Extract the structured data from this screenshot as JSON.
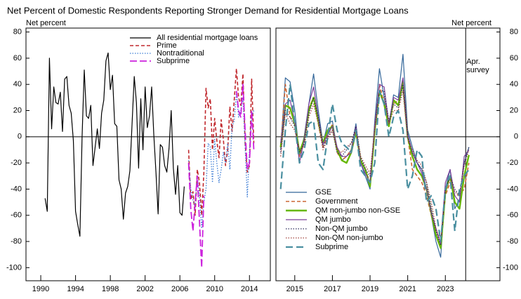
{
  "title": "Net Percent of Domestic Respondents Reporting Stronger Demand for Residential Mortgage Loans",
  "chart_data": [
    {
      "type": "line",
      "ylabel": "Net percent",
      "yaxis_side": "left",
      "legend": "upper right",
      "xlim": [
        1988.3,
        2016.4
      ],
      "ylim": [
        -110,
        83
      ],
      "xticks": [
        1990,
        1994,
        1998,
        2002,
        2006,
        2010,
        2014
      ],
      "yticks": [
        -100,
        -80,
        -60,
        -40,
        -20,
        0,
        20,
        40,
        60,
        80
      ],
      "series": [
        {
          "name": "All residential mortgage loans",
          "color": "#000000",
          "style": "solid",
          "x": [
            1990.5,
            1990.75,
            1991,
            1991.25,
            1991.5,
            1991.75,
            1992,
            1992.25,
            1992.5,
            1992.75,
            1993,
            1993.25,
            1993.5,
            1993.75,
            1994,
            1994.25,
            1994.5,
            1994.75,
            1995,
            1995.25,
            1995.5,
            1995.75,
            1996,
            1996.25,
            1996.5,
            1996.75,
            1997,
            1997.25,
            1997.5,
            1997.75,
            1998,
            1998.25,
            1998.5,
            1998.75,
            1999,
            1999.25,
            1999.5,
            1999.75,
            2000,
            2000.25,
            2000.5,
            2000.75,
            2001,
            2001.25,
            2001.5,
            2001.75,
            2002,
            2002.25,
            2002.5,
            2002.75,
            2003,
            2003.25,
            2003.5,
            2003.75,
            2004,
            2004.25,
            2004.5,
            2004.75,
            2005,
            2005.25,
            2005.5,
            2005.75,
            2006,
            2006.25,
            2006.5
          ],
          "values": [
            -47,
            -57,
            60,
            6,
            38,
            26,
            25,
            34,
            4,
            44,
            46,
            24,
            18,
            -3,
            -57,
            -67,
            -76,
            0,
            51,
            16,
            14,
            24,
            -22,
            -8,
            6,
            -9,
            18,
            28,
            58,
            64,
            36,
            47,
            10,
            8,
            -33,
            -40,
            -63,
            -43,
            -38,
            -26,
            10,
            46,
            26,
            -24,
            29,
            -10,
            38,
            7,
            16,
            38,
            2,
            -27,
            -59,
            -6,
            -8,
            -22,
            -27,
            -9,
            20,
            -24,
            -44,
            -22,
            -58,
            -60,
            -38
          ]
        },
        {
          "name": "Prime",
          "color": "#c0282d",
          "style": "dashed",
          "x": [
            2007,
            2007.25,
            2007.5,
            2007.75,
            2008,
            2008.25,
            2008.5,
            2008.75,
            2009,
            2009.25,
            2009.5,
            2009.75,
            2010,
            2010.25,
            2010.5,
            2010.75,
            2011,
            2011.25,
            2011.5,
            2011.75,
            2012,
            2012.25,
            2012.5,
            2012.75,
            2013,
            2013.25,
            2013.5,
            2013.75,
            2014,
            2014.25,
            2014.5
          ],
          "values": [
            -10,
            -48,
            -42,
            -60,
            -25,
            -35,
            -60,
            -28,
            37,
            22,
            29,
            -10,
            14,
            -3,
            -16,
            13,
            -2,
            -22,
            -10,
            23,
            4,
            28,
            52,
            30,
            24,
            48,
            -5,
            -27,
            -22,
            44,
            -5
          ]
        },
        {
          "name": "Nontraditional",
          "color": "#3a7bd5",
          "style": "dotted",
          "x": [
            2007,
            2007.25,
            2007.5,
            2007.75,
            2008,
            2008.25,
            2008.5,
            2008.75,
            2009,
            2009.25,
            2009.5,
            2009.75,
            2010,
            2010.25,
            2010.5,
            2010.75,
            2011,
            2011.25,
            2011.5,
            2011.75,
            2012,
            2012.25,
            2012.5,
            2012.75,
            2013,
            2013.25,
            2013.5,
            2013.75,
            2014,
            2014.25,
            2014.5
          ],
          "values": [
            -18,
            -40,
            -48,
            -55,
            -30,
            -45,
            -70,
            -50,
            -40,
            -5,
            -8,
            -35,
            -2,
            -20,
            -35,
            -25,
            -12,
            -20,
            -5,
            -25,
            8,
            12,
            34,
            15,
            20,
            30,
            -8,
            -46,
            -10,
            15,
            20
          ]
        },
        {
          "name": "Subprime",
          "color": "#cc22dd",
          "style": "longdash",
          "x": [
            2007,
            2007.25,
            2007.5,
            2007.75,
            2008,
            2008.25,
            2008.5,
            2008.75,
            2009,
            2009.25,
            2009.5,
            2009.75,
            2010,
            2010.25,
            2010.5,
            2010.75,
            2011,
            2011.25,
            2011.5,
            2011.75,
            2012,
            2012.25,
            2012.5,
            2012.75,
            2013,
            2013.25,
            2013.5,
            2013.75,
            2014,
            2014.25,
            2014.5
          ],
          "values": [
            -20,
            -55,
            -72,
            -50,
            -30,
            -65,
            -100,
            -45,
            null,
            null,
            null,
            null,
            null,
            null,
            null,
            null,
            null,
            null,
            null,
            null,
            null,
            null,
            35,
            20,
            15,
            40,
            5,
            -25,
            -20,
            20,
            -10
          ]
        }
      ]
    },
    {
      "type": "line",
      "ylabel": "Net percent",
      "yaxis_side": "right",
      "legend": "lower left",
      "xlim": [
        2014,
        2025.9
      ],
      "ylim": [
        -110,
        83
      ],
      "xticks": [
        2015,
        2017,
        2019,
        2021,
        2023
      ],
      "yticks": [
        -100,
        -80,
        -60,
        -40,
        -20,
        0,
        20,
        40,
        60,
        80
      ],
      "vline": 2024.08,
      "annotation": [
        "Apr.",
        "survey"
      ],
      "x": [
        2014.25,
        2014.5,
        2014.75,
        2015,
        2015.25,
        2015.5,
        2015.75,
        2016,
        2016.25,
        2016.5,
        2016.75,
        2017,
        2017.25,
        2017.5,
        2017.75,
        2018,
        2018.25,
        2018.5,
        2018.75,
        2019,
        2019.25,
        2019.5,
        2019.75,
        2020,
        2020.25,
        2020.5,
        2020.75,
        2021,
        2021.25,
        2021.5,
        2021.75,
        2022,
        2022.25,
        2022.5,
        2022.75,
        2023,
        2023.25,
        2023.5,
        2023.75,
        2024,
        2024.25
      ],
      "series": [
        {
          "name": "GSE",
          "color": "#336699",
          "style": "solid",
          "values": [
            -10,
            45,
            42,
            20,
            -15,
            0,
            25,
            48,
            20,
            -5,
            10,
            12,
            -10,
            -18,
            -15,
            -10,
            10,
            -20,
            -30,
            -40,
            12,
            52,
            30,
            8,
            32,
            30,
            63,
            5,
            -8,
            -20,
            -25,
            -40,
            -60,
            -80,
            -92,
            -40,
            -25,
            -55,
            -48,
            -20,
            -8
          ]
        },
        {
          "name": "Government",
          "color": "#cc6633",
          "style": "dashed",
          "values": [
            -8,
            40,
            15,
            10,
            -15,
            -5,
            22,
            30,
            10,
            -8,
            0,
            10,
            -12,
            -18,
            -15,
            -10,
            5,
            -18,
            -25,
            -35,
            8,
            40,
            25,
            10,
            25,
            28,
            38,
            0,
            -25,
            -30,
            -35,
            -45,
            -60,
            -75,
            -85,
            -45,
            -35,
            -45,
            -44,
            -40,
            -20
          ]
        },
        {
          "name": "QM non-jumbo non-GSE",
          "color": "#66b800",
          "style": "thick",
          "values": [
            -8,
            24,
            22,
            10,
            -12,
            -2,
            20,
            30,
            12,
            -5,
            5,
            8,
            -10,
            -18,
            -20,
            -12,
            4,
            -18,
            -25,
            -38,
            5,
            35,
            25,
            8,
            28,
            24,
            42,
            0,
            -15,
            -25,
            -30,
            -40,
            -58,
            -75,
            -85,
            -42,
            -30,
            -50,
            -55,
            -30,
            -14
          ]
        },
        {
          "name": "QM jumbo",
          "color": "#7a3d9a",
          "style": "solid",
          "values": [
            -5,
            25,
            28,
            12,
            -20,
            -2,
            25,
            38,
            15,
            -6,
            2,
            8,
            -8,
            -15,
            -15,
            -12,
            8,
            -20,
            -28,
            -35,
            8,
            40,
            38,
            10,
            30,
            28,
            45,
            2,
            -12,
            -20,
            -28,
            -40,
            -58,
            -70,
            -82,
            -35,
            -25,
            -45,
            -50,
            -15,
            -10
          ]
        },
        {
          "name": "Non-QM jumbo",
          "color": "#2b2b5a",
          "style": "dotted",
          "values": [
            -12,
            20,
            15,
            8,
            -12,
            -5,
            18,
            30,
            15,
            -8,
            0,
            5,
            -12,
            -15,
            -10,
            -5,
            8,
            -15,
            -25,
            -30,
            5,
            35,
            35,
            12,
            25,
            22,
            40,
            0,
            -12,
            -20,
            -25,
            -35,
            -55,
            -72,
            -83,
            -40,
            -30,
            -40,
            -45,
            -20,
            -8
          ]
        },
        {
          "name": "Non-QM non-jumbo",
          "color": "#a0403a",
          "style": "dotted",
          "values": [
            -15,
            18,
            10,
            5,
            -10,
            -8,
            15,
            25,
            10,
            -10,
            -2,
            5,
            -10,
            -12,
            -8,
            -5,
            5,
            -15,
            -22,
            -28,
            5,
            30,
            30,
            10,
            20,
            20,
            35,
            -2,
            -10,
            -18,
            -22,
            -35,
            -50,
            -70,
            -80,
            -42,
            -32,
            -42,
            -45,
            -22,
            -10
          ]
        },
        {
          "name": "Subprime",
          "color": "#4a8fa0",
          "style": "longthick",
          "values": [
            -40,
            5,
            40,
            10,
            -20,
            -10,
            10,
            12,
            -20,
            -25,
            0,
            25,
            5,
            -5,
            -8,
            -12,
            5,
            -25,
            -30,
            -35,
            -20,
            35,
            25,
            0,
            15,
            20,
            5,
            -40,
            -30,
            -10,
            -15,
            -50,
            -45,
            -55,
            -80,
            -40,
            -30,
            -72,
            -40,
            -30,
            -25
          ]
        }
      ]
    }
  ]
}
